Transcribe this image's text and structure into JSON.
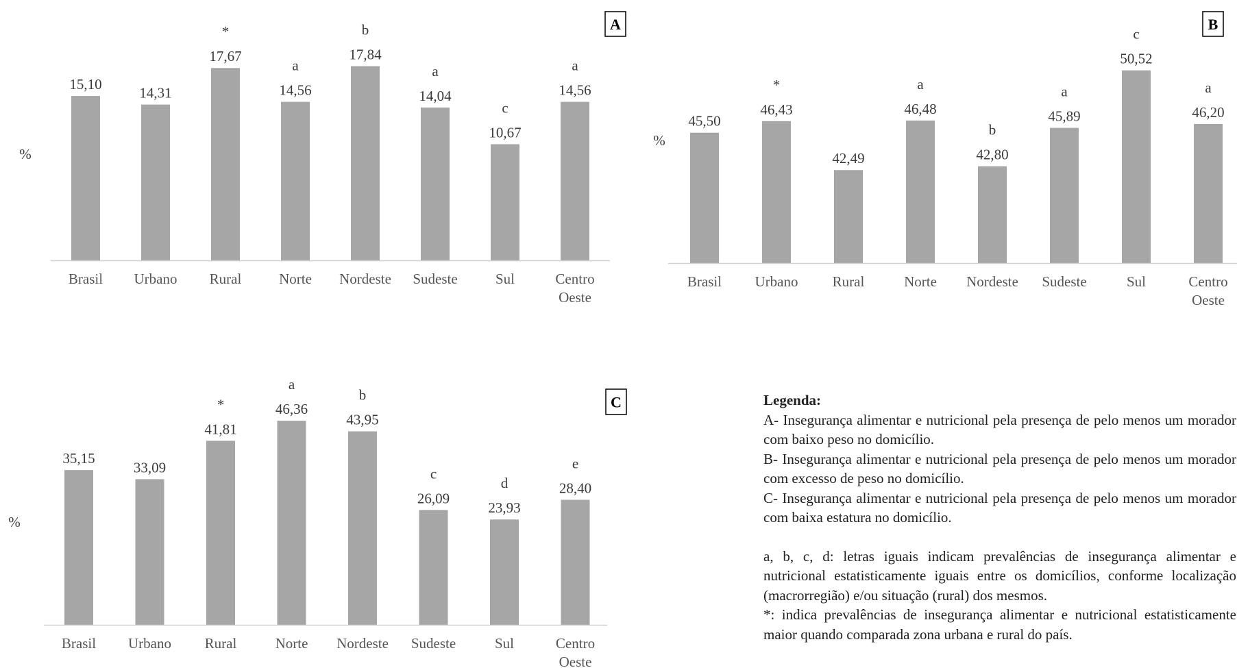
{
  "chart_data": [
    {
      "type": "bar",
      "panel": "A",
      "categories": [
        [
          "Brasil"
        ],
        [
          "Urbano"
        ],
        [
          "Rural"
        ],
        [
          "Norte"
        ],
        [
          "Nordeste"
        ],
        [
          "Sudeste"
        ],
        [
          "Sul"
        ],
        [
          "Centro",
          "Oeste"
        ]
      ],
      "values": [
        15.1,
        14.31,
        17.67,
        14.56,
        17.84,
        14.04,
        10.67,
        14.56
      ],
      "value_labels": [
        "15,10",
        "14,31",
        "17,67",
        "14,56",
        "17,84",
        "14,04",
        "10,67",
        "14,56"
      ],
      "markers": [
        "",
        "",
        "*",
        "a",
        "b",
        "a",
        "c",
        "a"
      ],
      "ylabel": "%",
      "ylim": [
        0,
        18
      ],
      "grid": false,
      "bar_color": "#a6a6a6"
    },
    {
      "type": "bar",
      "panel": "B",
      "categories": [
        [
          "Brasil"
        ],
        [
          "Urbano"
        ],
        [
          "Rural"
        ],
        [
          "Norte"
        ],
        [
          "Nordeste"
        ],
        [
          "Sudeste"
        ],
        [
          "Sul"
        ],
        [
          "Centro",
          "Oeste"
        ]
      ],
      "values": [
        45.5,
        46.43,
        42.49,
        46.48,
        42.8,
        45.89,
        50.52,
        46.2
      ],
      "value_labels": [
        "45,50",
        "46,43",
        "42,49",
        "46,48",
        "42,80",
        "45,89",
        "50,52",
        "46,20"
      ],
      "markers": [
        "",
        "*",
        "",
        "a",
        "b",
        "a",
        "c",
        "a"
      ],
      "ylabel": "%",
      "ylim": [
        35,
        51
      ],
      "grid": false,
      "bar_color": "#a6a6a6"
    },
    {
      "type": "bar",
      "panel": "C",
      "categories": [
        [
          "Brasil"
        ],
        [
          "Urbano"
        ],
        [
          "Rural"
        ],
        [
          "Norte"
        ],
        [
          "Nordeste"
        ],
        [
          "Sudeste"
        ],
        [
          "Sul"
        ],
        [
          "Centro",
          "Oeste"
        ]
      ],
      "values": [
        35.15,
        33.09,
        41.81,
        46.36,
        43.95,
        26.09,
        23.93,
        28.4
      ],
      "value_labels": [
        "35,15",
        "33,09",
        "41,81",
        "46,36",
        "43,95",
        "26,09",
        "23,93",
        "28,40"
      ],
      "markers": [
        "",
        "",
        "*",
        "a",
        "b",
        "c",
        "d",
        "e"
      ],
      "ylabel": "%",
      "ylim": [
        0,
        47
      ],
      "grid": false,
      "bar_color": "#a6a6a6"
    }
  ],
  "legend": {
    "title": "Legenda:",
    "line_a": "A- Insegurança alimentar e nutricional pela presença de pelo menos um morador com baixo peso no domicílio.",
    "line_b": "B- Insegurança alimentar e nutricional pela presença de pelo menos um morador com excesso de peso no domicílio.",
    "line_c": "C- Insegurança alimentar e nutricional pela presença de pelo menos um morador com baixa estatura no domicílio.",
    "letters_note": "a, b, c, d: letras iguais indicam prevalências de insegurança alimentar e nutricional estatisticamente iguais entre os domicílios, conforme localização (macrorregião) e/ou situação (rural) dos mesmos.",
    "asterisk_note": "*: indica prevalências de insegurança alimentar e nutricional estatisticamente maior quando comparada zona urbana e rural do país."
  }
}
